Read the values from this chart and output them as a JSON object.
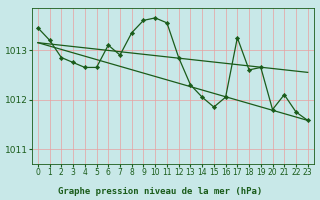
{
  "bg_color": "#c8e8e8",
  "plot_bg_color": "#c8e8e8",
  "grid_color": "#e8a0a0",
  "line_color": "#1a5c1a",
  "marker_color": "#1a5c1a",
  "xlabel": "Graphe pression niveau de la mer (hPa)",
  "xlim": [
    -0.5,
    23.5
  ],
  "ylim": [
    1010.7,
    1013.85
  ],
  "yticks": [
    1011,
    1012,
    1013
  ],
  "xticks": [
    0,
    1,
    2,
    3,
    4,
    5,
    6,
    7,
    8,
    9,
    10,
    11,
    12,
    13,
    14,
    15,
    16,
    17,
    18,
    19,
    20,
    21,
    22,
    23
  ],
  "series_main": {
    "x": [
      0,
      1,
      2,
      3,
      4,
      5,
      6,
      7,
      8,
      9,
      10,
      11,
      12,
      13,
      14,
      15,
      16,
      17,
      18,
      19,
      20,
      21,
      22,
      23
    ],
    "y": [
      1013.45,
      1013.2,
      1012.85,
      1012.75,
      1012.65,
      1012.65,
      1013.1,
      1012.9,
      1013.35,
      1013.6,
      1013.65,
      1013.55,
      1012.85,
      1012.3,
      1012.05,
      1011.85,
      1012.05,
      1013.25,
      1012.6,
      1012.65,
      1011.8,
      1012.1,
      1011.75,
      1011.58
    ]
  },
  "trend1": {
    "x": [
      0,
      23
    ],
    "y": [
      1013.15,
      1012.55
    ]
  },
  "trend2": {
    "x": [
      0,
      23
    ],
    "y": [
      1013.15,
      1011.58
    ]
  },
  "xlabel_fontsize": 6.5,
  "tick_fontsize": 5.5,
  "ytick_fontsize": 6.5,
  "linewidth": 0.9,
  "markersize": 2.2
}
